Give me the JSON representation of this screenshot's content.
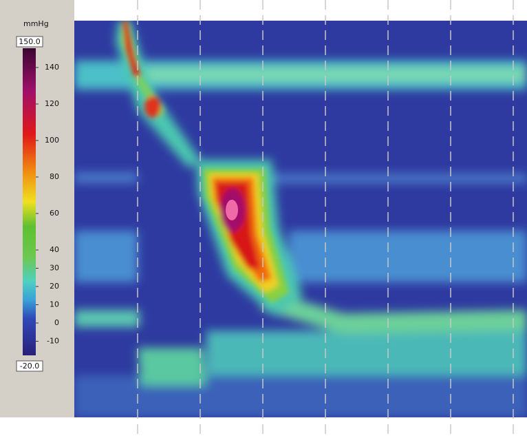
{
  "colorbar": {
    "unit": "mmHg",
    "max_label": "150.0",
    "min_label": "-20.0",
    "ticks": [
      140,
      120,
      100,
      80,
      60,
      40,
      30,
      20,
      10,
      0,
      -10
    ]
  }
}
